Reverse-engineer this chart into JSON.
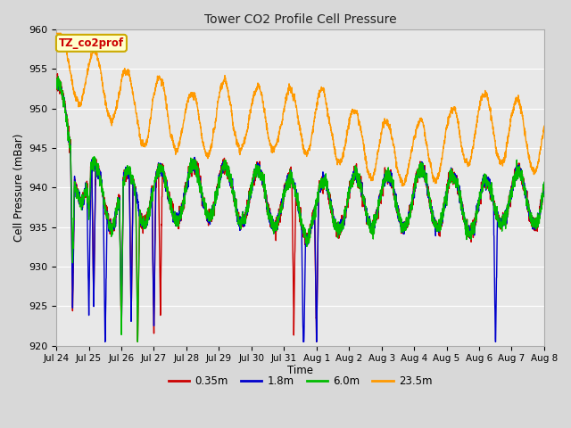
{
  "title": "Tower CO2 Profile Cell Pressure",
  "xlabel": "Time",
  "ylabel": "Cell Pressure (mBar)",
  "ylim": [
    920,
    960
  ],
  "yticks": [
    920,
    925,
    930,
    935,
    940,
    945,
    950,
    955,
    960
  ],
  "series": [
    {
      "label": "0.35m",
      "color": "#cc0000",
      "lw": 1.0
    },
    {
      "label": "1.8m",
      "color": "#0000cc",
      "lw": 1.0
    },
    {
      "label": "6.0m",
      "color": "#00bb00",
      "lw": 1.0
    },
    {
      "label": "23.5m",
      "color": "#ff9900",
      "lw": 1.0
    }
  ],
  "xtick_labels": [
    "Jul 24",
    "Jul 25",
    "Jul 26",
    "Jul 27",
    "Jul 28",
    "Jul 29",
    "Jul 30",
    "Jul 31",
    "Aug 1",
    "Aug 2",
    "Aug 3",
    "Aug 4",
    "Aug 5",
    "Aug 6",
    "Aug 7",
    "Aug 8"
  ],
  "box_label": "TZ_co2prof",
  "box_facecolor": "#ffffcc",
  "box_edgecolor": "#ccaa00",
  "box_textcolor": "#cc0000",
  "background_color": "#d8d8d8",
  "plot_bg_color": "#e8e8e8",
  "grid_color": "#c8c8c8",
  "n_points": 3000,
  "seed": 7
}
